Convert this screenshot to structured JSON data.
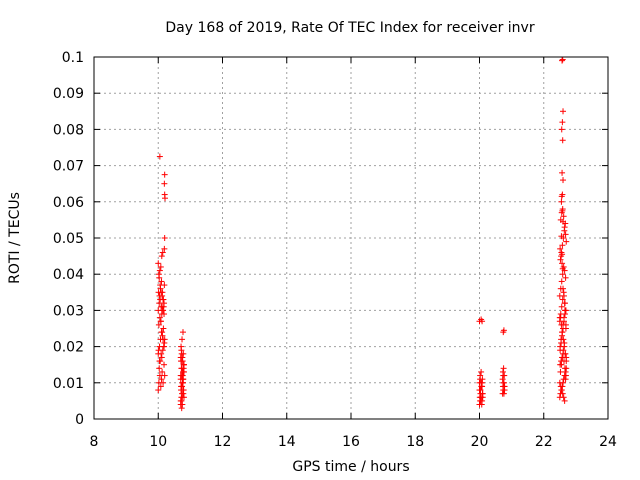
{
  "chart_data": {
    "type": "scatter",
    "title": "Day 168 of 2019, Rate Of TEC Index for receiver invr",
    "xlabel": "GPS time / hours",
    "ylabel": "ROTI / TECUs",
    "xlim": [
      8,
      24
    ],
    "ylim": [
      0,
      0.1
    ],
    "x_ticks": [
      8,
      10,
      12,
      14,
      16,
      18,
      20,
      22,
      24
    ],
    "x_tick_labels": [
      "8",
      "10",
      "12",
      "14",
      "16",
      "18",
      "20",
      "22",
      "24"
    ],
    "y_ticks": [
      0,
      0.01,
      0.02,
      0.03,
      0.04,
      0.05,
      0.06,
      0.07,
      0.08,
      0.09,
      0.1
    ],
    "y_tick_labels": [
      "0",
      "0.01",
      "0.02",
      "0.03",
      "0.04",
      "0.05",
      "0.06",
      "0.07",
      "0.08",
      "0.09",
      "0.1"
    ],
    "grid": true,
    "marker": "+",
    "color": "#ff0000",
    "series": [
      {
        "name": "ROTI",
        "x": [
          10.0,
          10.02,
          10.05,
          10.08,
          10.1,
          10.12,
          10.15,
          10.18,
          10.2,
          10.03,
          10.06,
          10.09,
          10.11,
          10.14,
          10.17,
          10.19,
          10.0,
          10.04,
          10.07,
          10.1,
          10.13,
          10.16,
          10.2,
          10.02,
          10.05,
          10.08,
          10.11,
          10.14,
          10.17,
          10.0,
          10.03,
          10.06,
          10.09,
          10.12,
          10.15,
          10.18,
          10.01,
          10.04,
          10.07,
          10.1,
          10.13,
          10.16,
          10.19,
          10.02,
          10.05,
          10.08,
          10.11,
          10.14,
          10.0,
          10.03,
          10.06,
          10.09,
          10.12,
          10.15,
          10.18,
          10.19,
          10.2,
          10.21,
          10.2,
          10.19,
          10.2,
          10.05,
          10.08,
          10.12,
          10.15,
          10.18,
          10.01,
          10.04,
          10.7,
          10.72,
          10.75,
          10.78,
          10.8,
          10.71,
          10.74,
          10.77,
          10.79,
          10.7,
          10.73,
          10.76,
          10.79,
          10.72,
          10.75,
          10.78,
          10.8,
          10.71,
          10.74,
          10.77,
          10.7,
          10.73,
          10.76,
          10.79,
          10.72,
          10.75,
          10.78,
          10.71,
          10.74,
          10.77,
          10.8,
          10.7,
          10.73,
          10.76,
          10.79,
          10.72,
          10.75,
          10.78,
          10.71,
          10.74,
          10.77,
          10.8,
          10.7,
          10.73,
          10.76,
          10.79,
          10.72,
          10.75,
          20.0,
          20.02,
          20.05,
          20.08,
          20.1,
          20.01,
          20.04,
          20.07,
          20.09,
          20.0,
          20.03,
          20.06,
          20.09,
          20.02,
          20.05,
          20.08,
          20.01,
          20.04,
          20.07,
          20.1,
          20.0,
          20.03,
          20.06,
          20.02,
          20.05,
          20.08,
          20.0,
          20.05,
          20.08,
          20.72,
          20.74,
          20.76,
          20.78,
          20.73,
          20.75,
          20.77,
          20.72,
          20.74,
          20.76,
          20.78,
          20.73,
          20.75,
          20.77,
          20.74,
          20.76,
          22.5,
          22.52,
          22.55,
          22.58,
          22.6,
          22.62,
          22.65,
          22.68,
          22.7,
          22.51,
          22.54,
          22.57,
          22.6,
          22.63,
          22.66,
          22.69,
          22.5,
          22.53,
          22.56,
          22.59,
          22.62,
          22.65,
          22.68,
          22.52,
          22.55,
          22.58,
          22.61,
          22.64,
          22.67,
          22.7,
          22.51,
          22.54,
          22.57,
          22.6,
          22.63,
          22.66,
          22.69,
          22.5,
          22.53,
          22.56,
          22.59,
          22.62,
          22.65,
          22.68,
          22.52,
          22.55,
          22.58,
          22.61,
          22.64,
          22.67,
          22.7,
          22.51,
          22.54,
          22.57,
          22.6,
          22.63,
          22.66,
          22.69,
          22.5,
          22.53,
          22.56,
          22.59,
          22.62,
          22.65,
          22.68,
          22.52,
          22.55,
          22.58,
          22.61,
          22.64,
          22.67,
          22.7,
          22.51,
          22.54,
          22.57,
          22.6,
          22.63,
          22.66,
          22.69,
          22.5,
          22.53,
          22.56,
          22.59,
          22.62,
          22.65,
          22.68,
          22.55,
          22.58,
          22.6,
          22.57,
          22.59,
          22.56,
          22.58,
          22.6,
          22.57,
          22.59,
          22.56,
          22.58,
          22.6,
          22.55,
          22.57,
          22.59
        ],
        "y": [
          0.008,
          0.01,
          0.012,
          0.009,
          0.011,
          0.013,
          0.01,
          0.015,
          0.012,
          0.014,
          0.016,
          0.018,
          0.017,
          0.019,
          0.02,
          0.021,
          0.018,
          0.02,
          0.022,
          0.024,
          0.023,
          0.025,
          0.022,
          0.026,
          0.028,
          0.027,
          0.029,
          0.03,
          0.031,
          0.03,
          0.032,
          0.033,
          0.031,
          0.034,
          0.033,
          0.032,
          0.035,
          0.034,
          0.036,
          0.038,
          0.035,
          0.033,
          0.037,
          0.04,
          0.041,
          0.042,
          0.045,
          0.046,
          0.043,
          0.039,
          0.037,
          0.035,
          0.031,
          0.03,
          0.029,
          0.047,
          0.05,
          0.061,
          0.062,
          0.065,
          0.0675,
          0.0725,
          0.027,
          0.024,
          0.022,
          0.02,
          0.019,
          0.016,
          0.004,
          0.005,
          0.006,
          0.007,
          0.006,
          0.008,
          0.009,
          0.01,
          0.008,
          0.011,
          0.012,
          0.01,
          0.013,
          0.014,
          0.012,
          0.011,
          0.015,
          0.016,
          0.014,
          0.013,
          0.017,
          0.018,
          0.016,
          0.015,
          0.019,
          0.017,
          0.018,
          0.009,
          0.007,
          0.011,
          0.013,
          0.005,
          0.003,
          0.012,
          0.014,
          0.016,
          0.01,
          0.008,
          0.02,
          0.022,
          0.024,
          0.015,
          0.012,
          0.009,
          0.011,
          0.013,
          0.006,
          0.004,
          0.004,
          0.005,
          0.006,
          0.005,
          0.007,
          0.008,
          0.006,
          0.009,
          0.007,
          0.01,
          0.008,
          0.009,
          0.011,
          0.012,
          0.01,
          0.009,
          0.006,
          0.005,
          0.004,
          0.006,
          0.008,
          0.007,
          0.009,
          0.011,
          0.013,
          0.01,
          0.027,
          0.0275,
          0.027,
          0.007,
          0.008,
          0.007,
          0.008,
          0.009,
          0.01,
          0.009,
          0.011,
          0.012,
          0.01,
          0.009,
          0.013,
          0.014,
          0.012,
          0.024,
          0.0245,
          0.006,
          0.007,
          0.008,
          0.009,
          0.01,
          0.011,
          0.012,
          0.013,
          0.014,
          0.015,
          0.016,
          0.017,
          0.018,
          0.016,
          0.014,
          0.012,
          0.01,
          0.009,
          0.008,
          0.007,
          0.006,
          0.005,
          0.011,
          0.013,
          0.015,
          0.017,
          0.019,
          0.021,
          0.018,
          0.016,
          0.02,
          0.022,
          0.024,
          0.026,
          0.028,
          0.03,
          0.025,
          0.027,
          0.029,
          0.031,
          0.033,
          0.035,
          0.032,
          0.03,
          0.028,
          0.026,
          0.024,
          0.022,
          0.02,
          0.018,
          0.017,
          0.019,
          0.021,
          0.023,
          0.025,
          0.027,
          0.029,
          0.026,
          0.034,
          0.036,
          0.038,
          0.04,
          0.042,
          0.041,
          0.039,
          0.044,
          0.046,
          0.048,
          0.05,
          0.052,
          0.054,
          0.049,
          0.047,
          0.045,
          0.043,
          0.036,
          0.034,
          0.032,
          0.03,
          0.028,
          0.055,
          0.057,
          0.058,
          0.056,
          0.053,
          0.051,
          0.06,
          0.062,
          0.066,
          0.068,
          0.077,
          0.08,
          0.082,
          0.085,
          0.099,
          0.0993,
          0.0615,
          0.0575,
          0.0545,
          0.0505,
          0.0455,
          0.0415
        ]
      }
    ]
  }
}
